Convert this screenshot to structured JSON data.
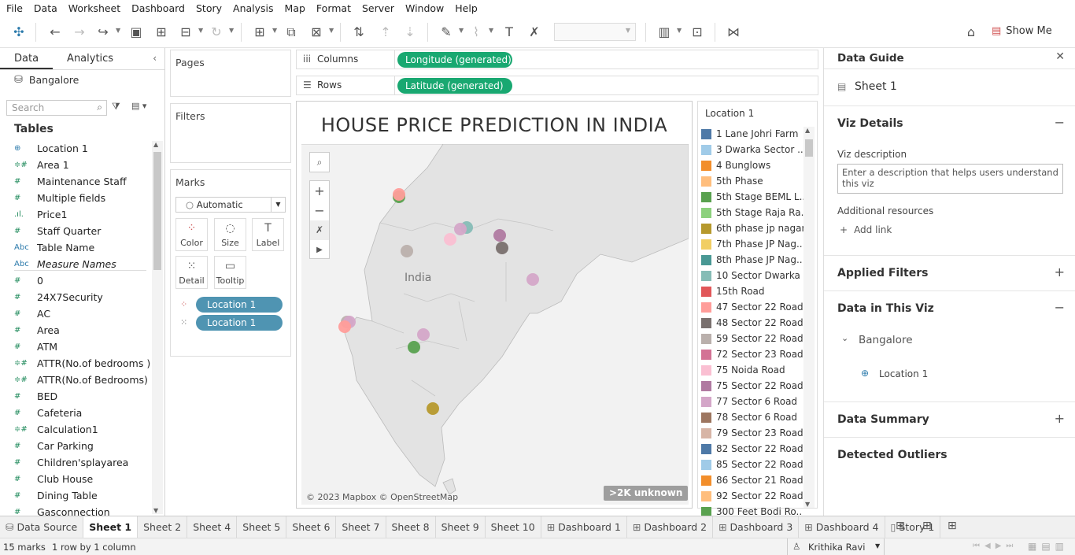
{
  "menu": [
    "File",
    "Data",
    "Worksheet",
    "Dashboard",
    "Story",
    "Analysis",
    "Map",
    "Format",
    "Server",
    "Window",
    "Help"
  ],
  "toolbar": {
    "show_me": "Show Me"
  },
  "left": {
    "tabs": {
      "data": "Data",
      "analytics": "Analytics"
    },
    "datasource": "Bangalore",
    "search_placeholder": "Search",
    "tables_heading": "Tables",
    "fields": [
      {
        "icon": "⊕",
        "label": "Location 1"
      },
      {
        "icon": "≑#",
        "label": "Area 1"
      },
      {
        "icon": "#",
        "label": "Maintenance Staff"
      },
      {
        "icon": "#",
        "label": "Multiple fields"
      },
      {
        "icon": ".ıl.",
        "label": "Price1"
      },
      {
        "icon": "#",
        "label": "Staff Quarter"
      },
      {
        "icon": "Abc",
        "label": "Table Name"
      },
      {
        "icon": "Abc",
        "label": "Measure Names"
      },
      {
        "icon": "#",
        "label": "0"
      },
      {
        "icon": "#",
        "label": "24X7Security"
      },
      {
        "icon": "#",
        "label": "AC"
      },
      {
        "icon": "#",
        "label": "Area"
      },
      {
        "icon": "#",
        "label": "ATM"
      },
      {
        "icon": "≑#",
        "label": "ATTR(No.of bedrooms )"
      },
      {
        "icon": "≑#",
        "label": "ATTR(No.of Bedrooms)"
      },
      {
        "icon": "#",
        "label": "BED"
      },
      {
        "icon": "#",
        "label": "Cafeteria"
      },
      {
        "icon": "≑#",
        "label": "Calculation1"
      },
      {
        "icon": "#",
        "label": "Car Parking"
      },
      {
        "icon": "#",
        "label": "Children'splayarea"
      },
      {
        "icon": "#",
        "label": "Club House"
      },
      {
        "icon": "#",
        "label": "Dining Table"
      },
      {
        "icon": "#",
        "label": "Gasconnection"
      }
    ]
  },
  "cards": {
    "pages": "Pages",
    "filters": "Filters",
    "marks": "Marks",
    "mark_type": "Automatic",
    "buttons": [
      "Color",
      "Size",
      "Label",
      "Detail",
      "Tooltip"
    ],
    "pills": [
      "Location 1",
      "Location 1"
    ]
  },
  "shelves": {
    "columns_label": "Columns",
    "rows_label": "Rows",
    "columns_pill": "Longitude (generated)",
    "rows_pill": "Latitude (generated)"
  },
  "viz": {
    "title": "HOUSE PRICE PREDICTION IN INDIA",
    "map_label": "India",
    "attribution": "© 2023 Mapbox © OpenStreetMap",
    "unknown_badge": ">2K unknown"
  },
  "legend": {
    "title": "Location 1",
    "items": [
      {
        "label": "1 Lane Johri Farm",
        "color": "#4e79a7"
      },
      {
        "label": "3 Dwarka Sector ..",
        "color": "#a0cbe8"
      },
      {
        "label": "4 Bunglows",
        "color": "#f28e2b"
      },
      {
        "label": "5th Phase",
        "color": "#ffbe7d"
      },
      {
        "label": "5th Stage BEML L..",
        "color": "#59a14f"
      },
      {
        "label": "5th Stage Raja Ra..",
        "color": "#8cd17d"
      },
      {
        "label": "6th phase jp nagar",
        "color": "#b6992d"
      },
      {
        "label": "7th Phase JP Nag..",
        "color": "#f1ce63"
      },
      {
        "label": "8th Phase JP Nag..",
        "color": "#499894"
      },
      {
        "label": "10 Sector Dwarka",
        "color": "#86bcb6"
      },
      {
        "label": "15th Road",
        "color": "#e15759"
      },
      {
        "label": "47 Sector 22 Road",
        "color": "#ff9d9a"
      },
      {
        "label": "48 Sector 22 Road",
        "color": "#79706e"
      },
      {
        "label": "59 Sector 22 Road",
        "color": "#bab0ac"
      },
      {
        "label": "72 Sector 23 Road",
        "color": "#d37295"
      },
      {
        "label": "75 Noida Road",
        "color": "#fabfd2"
      },
      {
        "label": "75 Sector 22 Road",
        "color": "#b07aa1"
      },
      {
        "label": "77 Sector 6 Road",
        "color": "#d4a6c8"
      },
      {
        "label": "78 Sector 6 Road",
        "color": "#9d7660"
      },
      {
        "label": "79 Sector 23 Road",
        "color": "#d7b5a6"
      },
      {
        "label": "82 Sector 22 Road",
        "color": "#4e79a7"
      },
      {
        "label": "85 Sector 22 Road",
        "color": "#a0cbe8"
      },
      {
        "label": "86 Sector 21 Road",
        "color": "#f28e2b"
      },
      {
        "label": "92 Sector 22 Road",
        "color": "#ffbe7d"
      },
      {
        "label": "300 Feet Bodi Ro..",
        "color": "#59a14f"
      }
    ]
  },
  "guide": {
    "title": "Data Guide",
    "sheet": "Sheet 1",
    "viz_details": "Viz Details",
    "viz_description_label": "Viz description",
    "viz_description_placeholder": "Enter a description that helps users understand this viz",
    "additional_resources": "Additional resources",
    "add_link": "Add link",
    "applied_filters": "Applied Filters",
    "data_in_viz": "Data in This Viz",
    "datasource": "Bangalore",
    "field": "Location 1",
    "data_summary": "Data Summary",
    "detected_outliers": "Detected Outliers"
  },
  "bottom_tabs": [
    "Data Source",
    "Sheet 1",
    "Sheet 2",
    "Sheet 4",
    "Sheet 5",
    "Sheet 6",
    "Sheet 7",
    "Sheet 8",
    "Sheet 9",
    "Sheet 10",
    "Dashboard 1",
    "Dashboard 2",
    "Dashboard 3",
    "Dashboard 4",
    "Story 1"
  ],
  "status": {
    "marks": "15 marks",
    "dims": "1 row by 1 column",
    "user": "Krithika  Ravi"
  }
}
